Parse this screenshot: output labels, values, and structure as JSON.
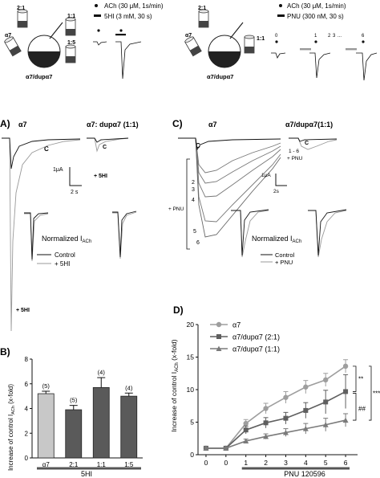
{
  "scheme_left": {
    "ratios": [
      "2:1",
      "1:1",
      "1:5"
    ],
    "receptor_label": "α7",
    "oocyte_label": "α7/dupα7",
    "legend": [
      {
        "marker": "dot",
        "text": "ACh (30 μM, 1s/min)"
      },
      {
        "marker": "bar",
        "text": "5HI (3 mM, 30 s)"
      }
    ]
  },
  "scheme_right": {
    "ratios": [
      "2:1",
      "1:1"
    ],
    "receptor_label": "α7",
    "oocyte_label": "α7/dupα7",
    "legend": [
      {
        "marker": "dot",
        "text": "ACh (30 μM, 1s/min)"
      },
      {
        "marker": "bar",
        "text": "PNU (300 nM, 30 s)"
      }
    ],
    "protocol_labels": [
      "0",
      "1",
      "2",
      "3",
      "...",
      "6"
    ]
  },
  "panel_A": {
    "letter": "A)",
    "title_left": "α7",
    "title_right": "α7: dupα7 (1:1)",
    "c_label": "C",
    "scale_current": "1μA",
    "scale_time": "2 s",
    "drug_label_right": "+ 5HI",
    "drug_label_bottom": "+ 5HI",
    "normalized_label": "Normalized I",
    "normalized_sub": "ACh",
    "legend": [
      "Control",
      "+ 5HI"
    ]
  },
  "panel_C": {
    "letter": "C)",
    "title_left": "α7",
    "title_right": "α7/dupα7(1:1)",
    "c_label": "C",
    "trace_numbers": [
      "2",
      "3",
      "4",
      "5",
      "6"
    ],
    "pnu_label": "+ PNU",
    "right_label_1": "1 - 6",
    "right_label_2": "+ PNU",
    "scale_current": "1μA",
    "scale_time": "2s",
    "normalized_label": "Normalized I",
    "normalized_sub": "ACh",
    "legend": [
      "Control",
      "+ PNU"
    ]
  },
  "chart_data": [
    {
      "type": "bar",
      "panel_letter": "B)",
      "ylabel": "Increase of control I",
      "ylabel_sub": "ACh",
      "ylabel_tail": " (x-fold)",
      "xlabel": "5HI",
      "categories": [
        "α7",
        "2:1",
        "1:1",
        "1:5"
      ],
      "values": [
        5.2,
        3.9,
        5.7,
        5.0
      ],
      "errors": [
        0.2,
        0.35,
        0.8,
        0.25
      ],
      "n_labels": [
        "(5)",
        "(5)",
        "(4)",
        "(4)"
      ],
      "ylim": [
        0,
        8
      ],
      "yticks": [
        "0",
        "2",
        "4",
        "6",
        "8"
      ],
      "colors": [
        "#c8c8c8",
        "#5a5a5a",
        "#5a5a5a",
        "#5a5a5a"
      ]
    },
    {
      "type": "line",
      "panel_letter": "D)",
      "ylabel": "Increase of control I",
      "ylabel_sub": "ACh",
      "ylabel_tail": " (x-fold)",
      "xlabel": "PNU 120596",
      "x": [
        0,
        1,
        2,
        3,
        4,
        5,
        6
      ],
      "xticks": [
        "0",
        "0",
        "1",
        "2",
        "3",
        "4",
        "5",
        "6"
      ],
      "x_positions": [
        -1,
        0,
        1,
        2,
        3,
        4,
        5,
        6
      ],
      "ylim": [
        0,
        20
      ],
      "yticks": [
        "0",
        "5",
        "10",
        "15",
        "20"
      ],
      "series": [
        {
          "name": "α7",
          "marker": "circle",
          "color": "#9e9e9e",
          "x": [
            -1,
            0,
            1,
            2,
            3,
            4,
            5,
            6
          ],
          "values": [
            1,
            1,
            4.8,
            7.1,
            8.8,
            10.4,
            11.5,
            13.6
          ],
          "errors": [
            0.2,
            0.2,
            0.6,
            0.8,
            0.9,
            1.0,
            1.0,
            1.0
          ]
        },
        {
          "name": "α7/dupα7 (2:1)",
          "marker": "square",
          "color": "#5f5f5f",
          "x": [
            -1,
            0,
            1,
            2,
            3,
            4,
            5,
            6
          ],
          "values": [
            1,
            1,
            3.8,
            4.9,
            5.6,
            6.8,
            8.1,
            9.7
          ],
          "errors": [
            0.2,
            0.2,
            0.6,
            0.8,
            0.9,
            1.2,
            1.8,
            2.6
          ]
        },
        {
          "name": "α7/dupα7 (1:1)",
          "marker": "triangle",
          "color": "#7a7a7a",
          "x": [
            -1,
            0,
            1,
            2,
            3,
            4,
            5,
            6
          ],
          "values": [
            1,
            1,
            2.1,
            2.8,
            3.4,
            4.0,
            4.6,
            5.3
          ],
          "errors": [
            0.2,
            0.2,
            0.3,
            0.4,
            0.6,
            0.8,
            1.0,
            1.0
          ]
        }
      ],
      "significance": [
        "**",
        "***",
        "##"
      ]
    }
  ]
}
